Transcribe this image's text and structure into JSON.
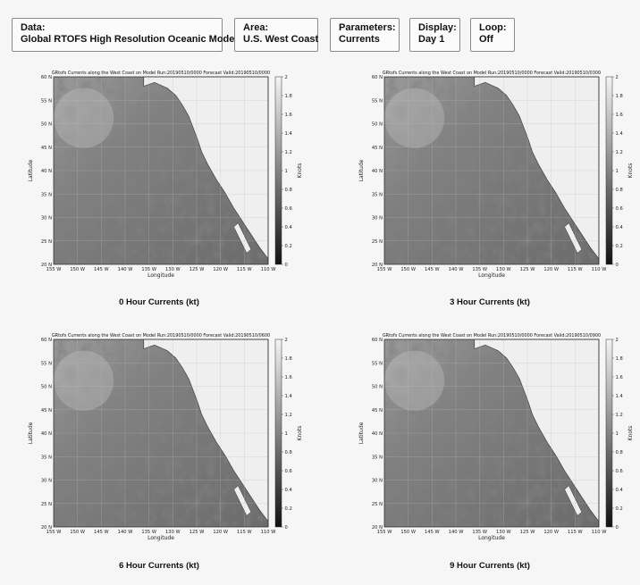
{
  "header": {
    "data_label": "Data:",
    "data_value": "Global RTOFS High Resolution Oceanic Model",
    "area_label": "Area:",
    "area_value": "U.S. West Coast",
    "params_label": "Parameters:",
    "params_value": "Currents",
    "display_label": "Display:",
    "display_value": "Day 1",
    "loop_label": "Loop:",
    "loop_value": "Off"
  },
  "axes": {
    "xlabel": "Longitude",
    "ylabel": "Latitude",
    "colorbar_label": "Knots",
    "lon_ticks": [
      "155 W",
      "150 W",
      "145 W",
      "140 W",
      "135 W",
      "130 W",
      "125 W",
      "120 W",
      "115 W",
      "110 W"
    ],
    "lat_ticks": [
      "20 N",
      "25 N",
      "30 N",
      "35 N",
      "40 N",
      "45 N",
      "50 N",
      "55 N",
      "60 N"
    ],
    "cbar_ticks": [
      "0",
      "0.2",
      "0.4",
      "0.6",
      "0.8",
      "1",
      "1.2",
      "1.4",
      "1.6",
      "1.8",
      "2"
    ]
  },
  "panels": [
    {
      "title": "GRtofs Currents along the West Coast on Model Run:20190510/0000 Forecast Valid:20190510/0000",
      "caption": "0 Hour Currents (kt)"
    },
    {
      "title": "GRtofs Currents along the West Coast on Model Run:20190510/0000 Forecast Valid:20190510/0300",
      "caption": "3 Hour Currents (kt)"
    },
    {
      "title": "GRtofs Currents along the West Coast on Model Run:20190510/0000 Forecast Valid:20190510/0600",
      "caption": "6 Hour Currents (kt)"
    },
    {
      "title": "GRtofs Currents along the West Coast on Model Run:20190510/0000 Forecast Valid:20190510/0900",
      "caption": "9 Hour Currents (kt)"
    }
  ],
  "colors": {
    "page_bg": "#f6f6f6",
    "ocean_dark": "#3a3a3a",
    "ocean_light": "#c8c8c8",
    "land": "#efefef",
    "border": "#8a8a8a"
  }
}
